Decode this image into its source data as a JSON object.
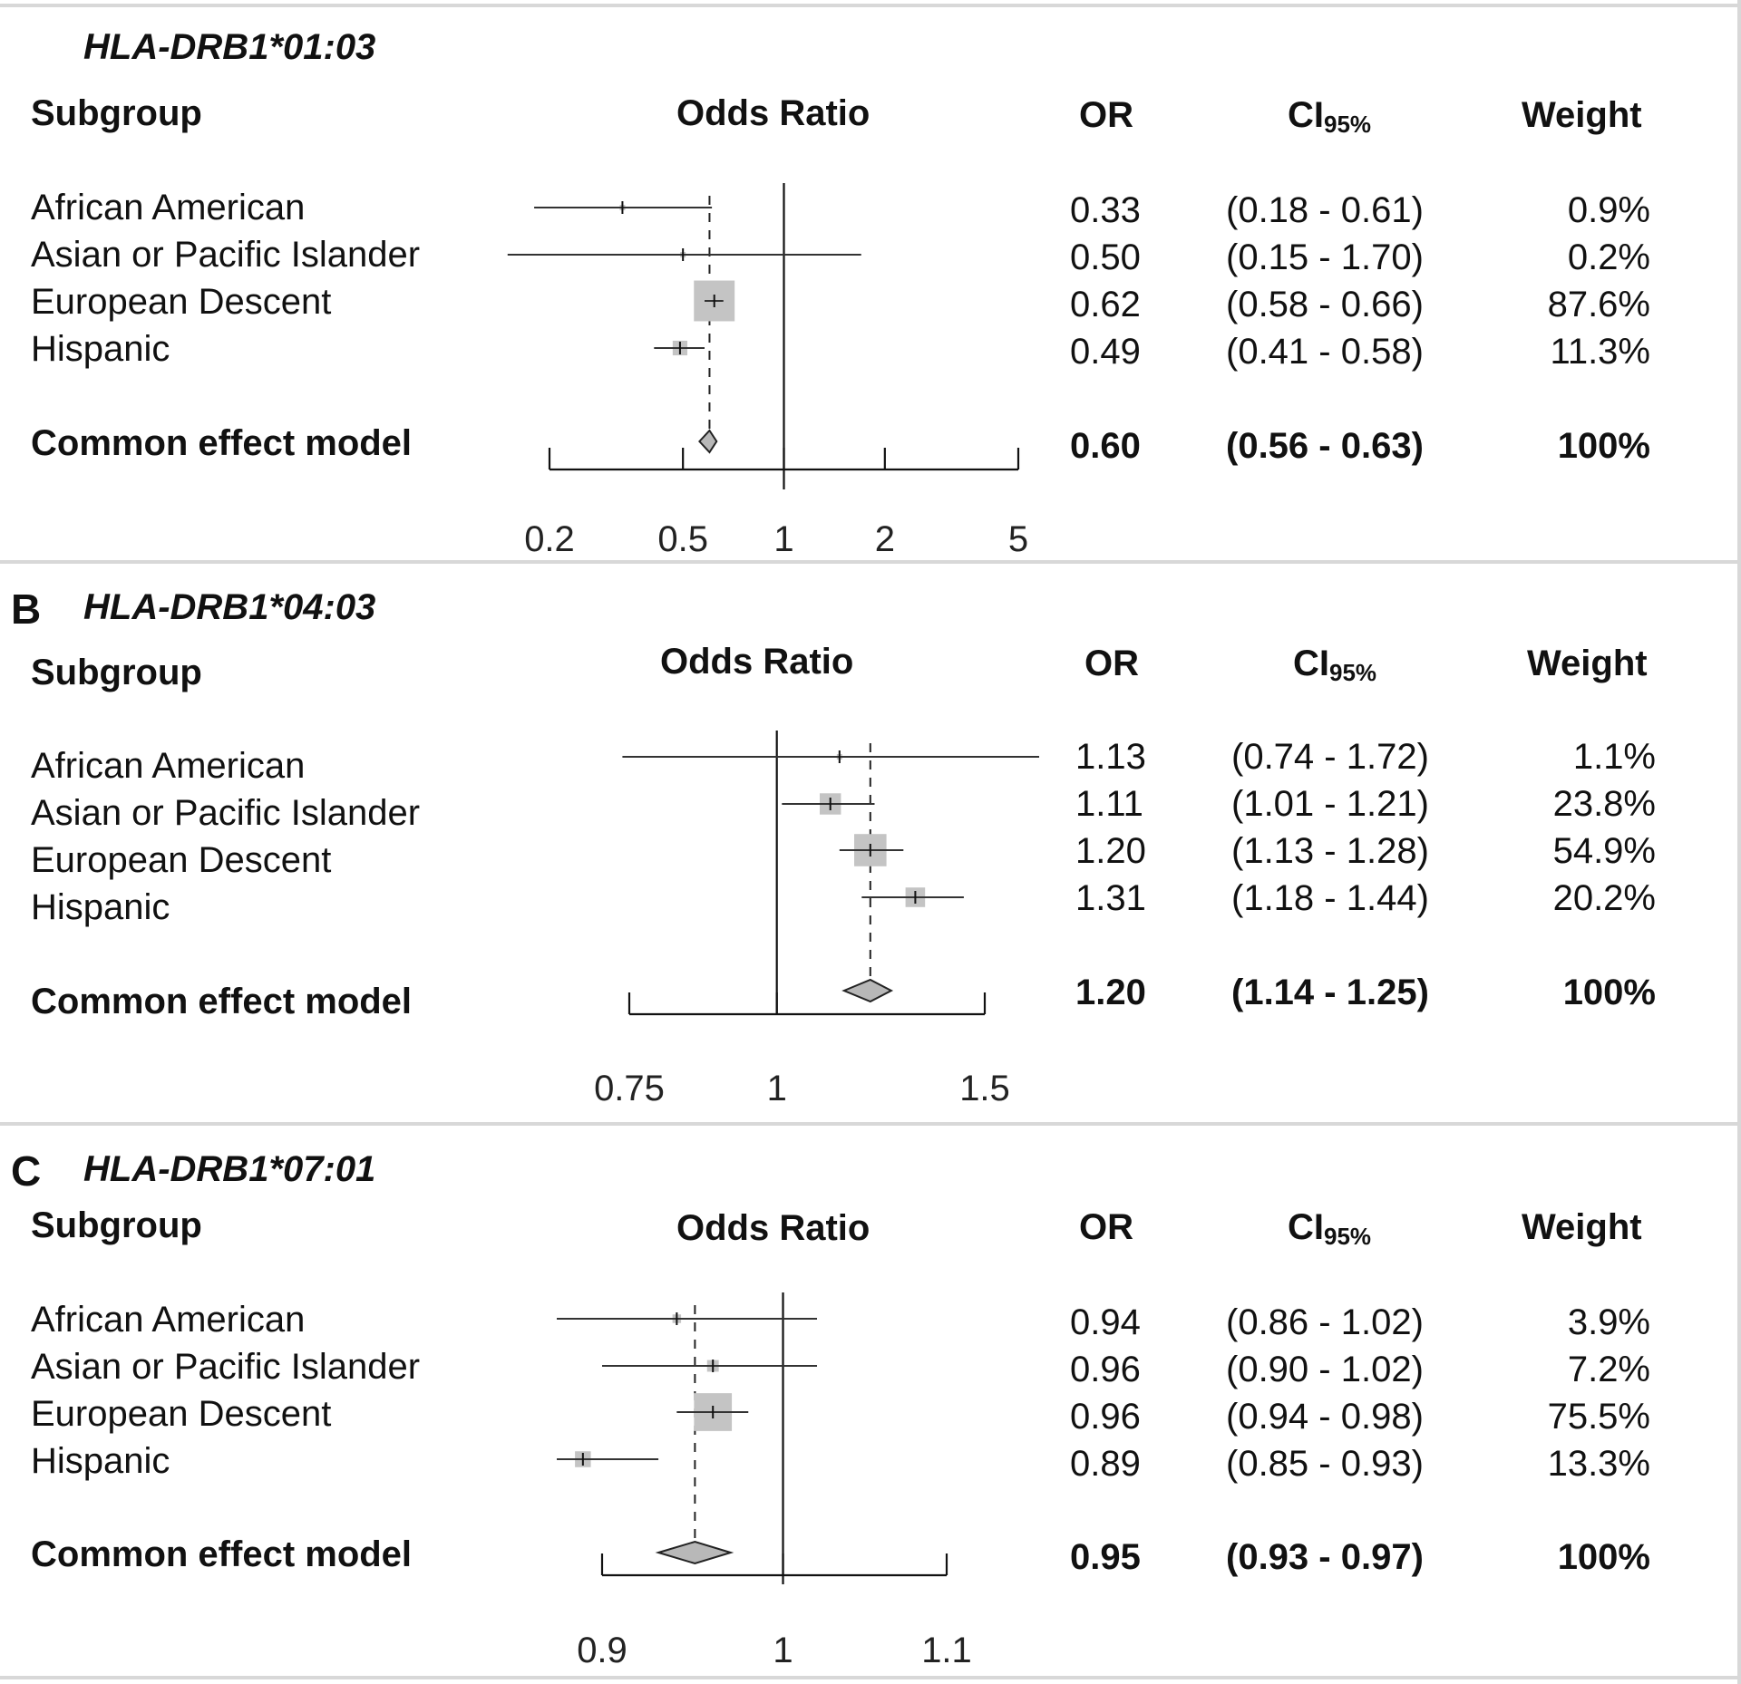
{
  "panels": [
    {
      "letter": "",
      "gene": "HLA-DRB1*01:03",
      "headers": {
        "subgroup": "Subgroup",
        "or_title": "Odds Ratio",
        "or": "OR",
        "ci": "CI",
        "ci_sub": "95%",
        "weight": "Weight"
      },
      "rows": [
        {
          "label": "African American",
          "or": "0.33",
          "ci": "(0.18 - 0.61)",
          "weight": "0.9%"
        },
        {
          "label": "Asian or Pacific Islander",
          "or": "0.50",
          "ci": "(0.15 - 1.70)",
          "weight": "0.2%"
        },
        {
          "label": "European Descent",
          "or": "0.62",
          "ci": "(0.58 - 0.66)",
          "weight": "87.6%"
        },
        {
          "label": "Hispanic",
          "or": "0.49",
          "ci": "(0.41 - 0.58)",
          "weight": "11.3%"
        }
      ],
      "common": {
        "label": "Common effect model",
        "or": "0.60",
        "ci": "(0.56 - 0.63)",
        "weight": "100%"
      }
    },
    {
      "letter": "B",
      "gene": "HLA-DRB1*04:03",
      "headers": {
        "subgroup": "Subgroup",
        "or_title": "Odds Ratio",
        "or": "OR",
        "ci": "CI",
        "ci_sub": "95%",
        "weight": "Weight"
      },
      "rows": [
        {
          "label": "African American",
          "or": "1.13",
          "ci": "(0.74 - 1.72)",
          "weight": "1.1%"
        },
        {
          "label": "Asian or Pacific Islander",
          "or": "1.11",
          "ci": "(1.01 - 1.21)",
          "weight": "23.8%"
        },
        {
          "label": "European Descent",
          "or": "1.20",
          "ci": "(1.13 - 1.28)",
          "weight": "54.9%"
        },
        {
          "label": "Hispanic",
          "or": "1.31",
          "ci": "(1.18 - 1.44)",
          "weight": "20.2%"
        }
      ],
      "common": {
        "label": "Common effect model",
        "or": "1.20",
        "ci": "(1.14 - 1.25)",
        "weight": "100%"
      }
    },
    {
      "letter": "C",
      "gene": "HLA-DRB1*07:01",
      "headers": {
        "subgroup": "Subgroup",
        "or_title": "Odds Ratio",
        "or": "OR",
        "ci": "CI",
        "ci_sub": "95%",
        "weight": "Weight"
      },
      "rows": [
        {
          "label": "African American",
          "or": "0.94",
          "ci": "(0.86 - 1.02)",
          "weight": "3.9%"
        },
        {
          "label": "Asian or Pacific Islander",
          "or": "0.96",
          "ci": "(0.90 - 1.02)",
          "weight": "7.2%"
        },
        {
          "label": "European Descent",
          "or": "0.96",
          "ci": "(0.94 - 0.98)",
          "weight": "75.5%"
        },
        {
          "label": "Hispanic",
          "or": "0.89",
          "ci": "(0.85 - 0.93)",
          "weight": "13.3%"
        }
      ],
      "common": {
        "label": "Common effect model",
        "or": "0.95",
        "ci": "(0.93 - 0.97)",
        "weight": "100%"
      }
    }
  ],
  "chart_data": [
    {
      "type": "forest",
      "title": "HLA-DRB1*01:03",
      "xscale": "log",
      "xlim": [
        0.2,
        5
      ],
      "xticks": [
        0.2,
        0.5,
        1,
        2,
        5
      ],
      "xtick_labels": [
        "0.2",
        "0.5",
        "1",
        "2",
        "5"
      ],
      "reference": 1,
      "studies": [
        {
          "name": "African American",
          "or": 0.33,
          "lo": 0.18,
          "hi": 0.61,
          "weight": 0.9
        },
        {
          "name": "Asian or Pacific Islander",
          "or": 0.5,
          "lo": 0.15,
          "hi": 1.7,
          "weight": 0.2
        },
        {
          "name": "European Descent",
          "or": 0.62,
          "lo": 0.58,
          "hi": 0.66,
          "weight": 87.6
        },
        {
          "name": "Hispanic",
          "or": 0.49,
          "lo": 0.41,
          "hi": 0.58,
          "weight": 11.3
        }
      ],
      "pooled": {
        "name": "Common effect model",
        "or": 0.6,
        "lo": 0.56,
        "hi": 0.63
      }
    },
    {
      "type": "forest",
      "title": "HLA-DRB1*04:03",
      "xscale": "log",
      "xlim": [
        0.75,
        1.5
      ],
      "xticks": [
        0.75,
        1,
        1.5
      ],
      "xtick_labels": [
        "0.75",
        "1",
        "1.5"
      ],
      "reference": 1,
      "studies": [
        {
          "name": "African American",
          "or": 1.13,
          "lo": 0.74,
          "hi": 1.72,
          "weight": 1.1
        },
        {
          "name": "Asian or Pacific Islander",
          "or": 1.11,
          "lo": 1.01,
          "hi": 1.21,
          "weight": 23.8
        },
        {
          "name": "European Descent",
          "or": 1.2,
          "lo": 1.13,
          "hi": 1.28,
          "weight": 54.9
        },
        {
          "name": "Hispanic",
          "or": 1.31,
          "lo": 1.18,
          "hi": 1.44,
          "weight": 20.2
        }
      ],
      "pooled": {
        "name": "Common effect model",
        "or": 1.2,
        "lo": 1.14,
        "hi": 1.25
      }
    },
    {
      "type": "forest",
      "title": "HLA-DRB1*07:01",
      "xscale": "log",
      "xlim": [
        0.9,
        1.1
      ],
      "xticks": [
        0.9,
        1,
        1.1
      ],
      "xtick_labels": [
        "0.9",
        "1",
        "1.1"
      ],
      "reference": 1,
      "studies": [
        {
          "name": "African American",
          "or": 0.94,
          "lo": 0.86,
          "hi": 1.02,
          "weight": 3.9
        },
        {
          "name": "Asian or Pacific Islander",
          "or": 0.96,
          "lo": 0.9,
          "hi": 1.02,
          "weight": 7.2
        },
        {
          "name": "European Descent",
          "or": 0.96,
          "lo": 0.94,
          "hi": 0.98,
          "weight": 75.5
        },
        {
          "name": "Hispanic",
          "or": 0.89,
          "lo": 0.85,
          "hi": 0.93,
          "weight": 13.3
        }
      ],
      "pooled": {
        "name": "Common effect model",
        "or": 0.95,
        "lo": 0.93,
        "hi": 0.97
      }
    }
  ]
}
